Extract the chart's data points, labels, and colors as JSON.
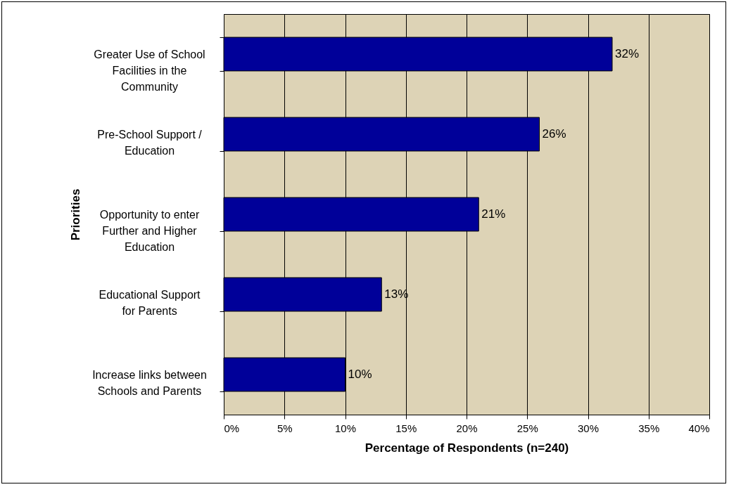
{
  "chart_data": {
    "type": "bar",
    "orientation": "horizontal",
    "xlabel": "Percentage of Respondents (n=240)",
    "ylabel": "Priorities",
    "categories": [
      "Greater Use of School Facilities in the Community",
      "Pre-School Support / Education",
      "Opportunity to enter Further and Higher Education",
      "Educational Support for Parents",
      "Increase links between Schools and Parents"
    ],
    "values": [
      32,
      26,
      21,
      13,
      10
    ],
    "value_labels": [
      "32%",
      "26%",
      "21%",
      "13%",
      "10%"
    ],
    "color": "#000099",
    "xlim": [
      0,
      40
    ],
    "xticks": [
      {
        "value": 0,
        "label": "0%"
      },
      {
        "value": 5,
        "label": "5%"
      },
      {
        "value": 10,
        "label": "10%"
      },
      {
        "value": 15,
        "label": "15%"
      },
      {
        "value": 20,
        "label": "20%"
      },
      {
        "value": 25,
        "label": "25%"
      },
      {
        "value": 30,
        "label": "30%"
      },
      {
        "value": 35,
        "label": "35%"
      },
      {
        "value": 40,
        "label": "40%"
      }
    ],
    "grid": "x"
  }
}
